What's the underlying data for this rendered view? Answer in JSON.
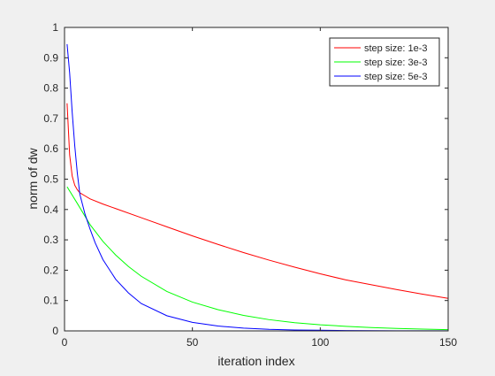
{
  "chart_data": {
    "type": "line",
    "xlabel": "iteration index",
    "ylabel": "norm of dw",
    "xlim": [
      0,
      150
    ],
    "ylim": [
      0,
      1
    ],
    "xticks": [
      0,
      50,
      100,
      150
    ],
    "yticks": [
      0,
      0.1,
      0.2,
      0.3,
      0.4,
      0.5,
      0.6,
      0.7,
      0.8,
      0.9,
      1
    ],
    "xtick_labels": [
      "0",
      "50",
      "100",
      "150"
    ],
    "ytick_labels": [
      "0",
      "0.1",
      "0.2",
      "0.3",
      "0.4",
      "0.5",
      "0.6",
      "0.7",
      "0.8",
      "0.9",
      "1"
    ],
    "grid": false,
    "legend_position": "top-right",
    "series": [
      {
        "name": "step size: 1e-3",
        "color": "#ff0000",
        "x": [
          1,
          2,
          3,
          4,
          5,
          6,
          8,
          10,
          15,
          20,
          30,
          40,
          50,
          60,
          70,
          80,
          90,
          100,
          110,
          120,
          130,
          140,
          150
        ],
        "y": [
          0.75,
          0.58,
          0.51,
          0.48,
          0.465,
          0.455,
          0.445,
          0.435,
          0.418,
          0.403,
          0.373,
          0.343,
          0.313,
          0.285,
          0.258,
          0.233,
          0.21,
          0.188,
          0.168,
          0.152,
          0.136,
          0.121,
          0.107
        ]
      },
      {
        "name": "step size: 3e-3",
        "color": "#00ff00",
        "x": [
          1,
          5,
          10,
          15,
          20,
          25,
          30,
          40,
          50,
          60,
          70,
          80,
          90,
          100,
          110,
          120,
          130,
          140,
          150
        ],
        "y": [
          0.475,
          0.42,
          0.35,
          0.295,
          0.25,
          0.212,
          0.18,
          0.13,
          0.095,
          0.07,
          0.051,
          0.037,
          0.027,
          0.02,
          0.015,
          0.011,
          0.008,
          0.006,
          0.004
        ]
      },
      {
        "name": "step size: 5e-3",
        "color": "#0000ff",
        "x": [
          1,
          2,
          3,
          4,
          5,
          6,
          8,
          10,
          12,
          15,
          20,
          25,
          30,
          40,
          50,
          60,
          70,
          80,
          90,
          100,
          110,
          120,
          130,
          140,
          150
        ],
        "y": [
          0.945,
          0.85,
          0.72,
          0.61,
          0.52,
          0.45,
          0.385,
          0.335,
          0.29,
          0.235,
          0.17,
          0.125,
          0.09,
          0.05,
          0.028,
          0.016,
          0.009,
          0.005,
          0.003,
          0.002,
          0.001,
          0.0008,
          0.0005,
          0.0003,
          0.0002
        ]
      }
    ]
  }
}
